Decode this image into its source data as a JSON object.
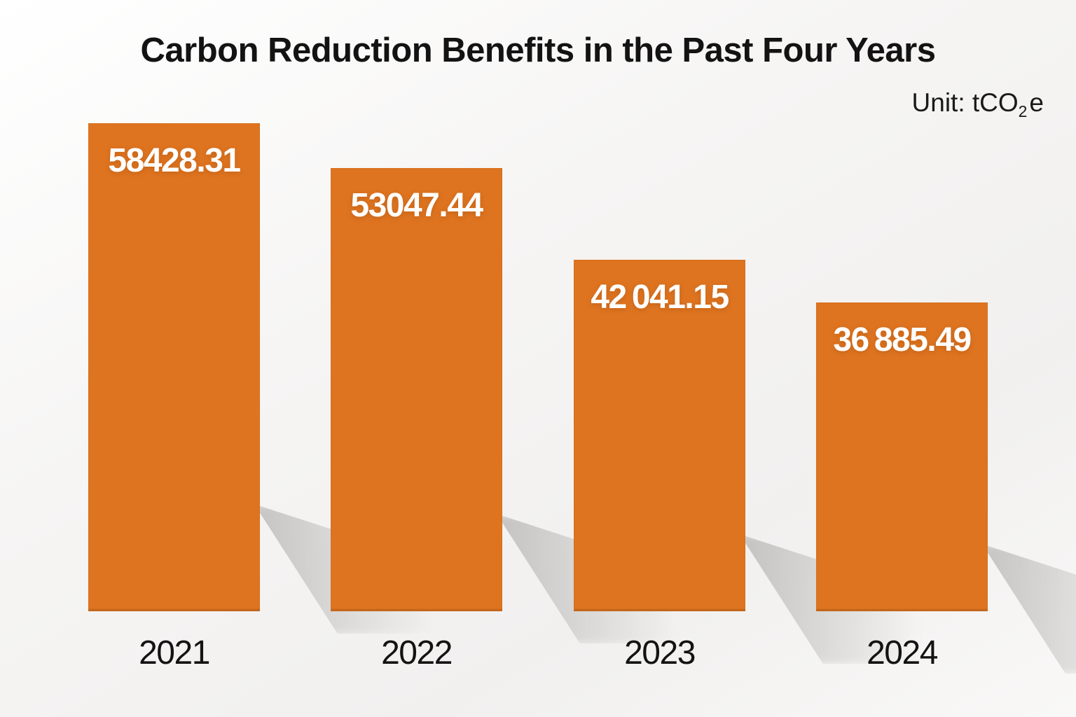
{
  "header": {
    "title": "Carbon Reduction Benefits in the Past Four Years",
    "unit_prefix": "Unit: tCO",
    "unit_sub": "2",
    "unit_suffix": "e"
  },
  "chart_data": {
    "type": "bar",
    "orientation": "vertical",
    "title": "Carbon Reduction Benefits in the Past Four Years",
    "unit": "tCO2e",
    "categories": [
      "2021",
      "2022",
      "2023",
      "2024"
    ],
    "values": [
      58428.31,
      53047.44,
      42041.15,
      36885.49
    ],
    "value_labels": [
      "58428.31",
      "53047.44",
      "42 041.15",
      "36 885.49"
    ],
    "ylim": [
      0,
      60000
    ],
    "grid": false,
    "legend": "none",
    "bar_color": "#de7420",
    "value_label_color": "#ffffff",
    "text_color": "#131313"
  }
}
